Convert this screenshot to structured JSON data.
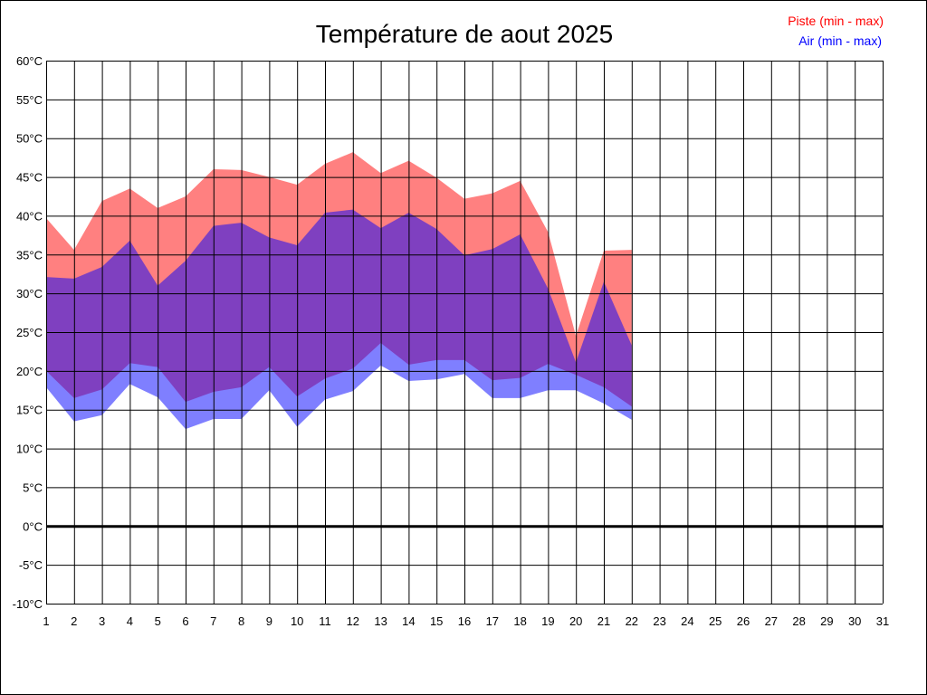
{
  "chart_data": {
    "type": "area",
    "title": "Température de aout 2025",
    "xlabel": "",
    "ylabel": "",
    "ylim": [
      -10,
      60
    ],
    "xlim": [
      1,
      31
    ],
    "grid": true,
    "legend_placement": "top-right",
    "y_ticks": [
      60,
      55,
      50,
      45,
      40,
      35,
      30,
      25,
      20,
      15,
      10,
      5,
      0,
      -5,
      -10
    ],
    "y_tick_labels": [
      "60°C",
      "55°C",
      "50°C",
      "45°C",
      "40°C",
      "35°C",
      "30°C",
      "25°C",
      "20°C",
      "15°C",
      "10°C",
      "5°C",
      "0°C",
      "-5°C",
      "-10°C"
    ],
    "x_ticks": [
      1,
      2,
      3,
      4,
      5,
      6,
      7,
      8,
      9,
      10,
      11,
      12,
      13,
      14,
      15,
      16,
      17,
      18,
      19,
      20,
      21,
      22,
      23,
      24,
      25,
      26,
      27,
      28,
      29,
      30,
      31
    ],
    "x": [
      1,
      2,
      3,
      4,
      5,
      6,
      7,
      8,
      9,
      10,
      11,
      12,
      13,
      14,
      15,
      16,
      17,
      18,
      19,
      20,
      21,
      22
    ],
    "series": [
      {
        "name": "Piste (min - max)",
        "color": "#ff0000",
        "fill": "#ff8080",
        "min": [
          20.0,
          16.5,
          17.6,
          21.0,
          20.5,
          16.0,
          17.3,
          17.9,
          20.5,
          16.7,
          19.0,
          20.3,
          23.6,
          20.8,
          21.4,
          21.4,
          18.8,
          19.1,
          20.9,
          19.5,
          17.9,
          15.4
        ],
        "max": [
          39.7,
          35.6,
          41.9,
          43.5,
          41.0,
          42.5,
          46.0,
          45.9,
          45.0,
          44.0,
          46.7,
          48.2,
          45.5,
          47.1,
          44.9,
          42.2,
          42.9,
          44.5,
          37.9,
          24.5,
          35.5,
          35.6
        ]
      },
      {
        "name": "Air (min - max)",
        "color": "#0000ff",
        "fill": "#0000ff",
        "min": [
          17.9,
          13.5,
          14.3,
          18.3,
          16.6,
          12.5,
          13.8,
          13.8,
          17.5,
          12.8,
          16.3,
          17.4,
          20.7,
          18.7,
          18.9,
          19.6,
          16.5,
          16.5,
          17.5,
          17.5,
          15.8,
          13.7
        ],
        "max": [
          32.1,
          31.9,
          33.4,
          36.8,
          31.0,
          34.2,
          38.7,
          39.1,
          37.2,
          36.2,
          40.4,
          40.8,
          38.4,
          40.4,
          38.3,
          34.9,
          35.7,
          37.6,
          30.6,
          21.1,
          31.5,
          23.3
        ]
      }
    ]
  }
}
